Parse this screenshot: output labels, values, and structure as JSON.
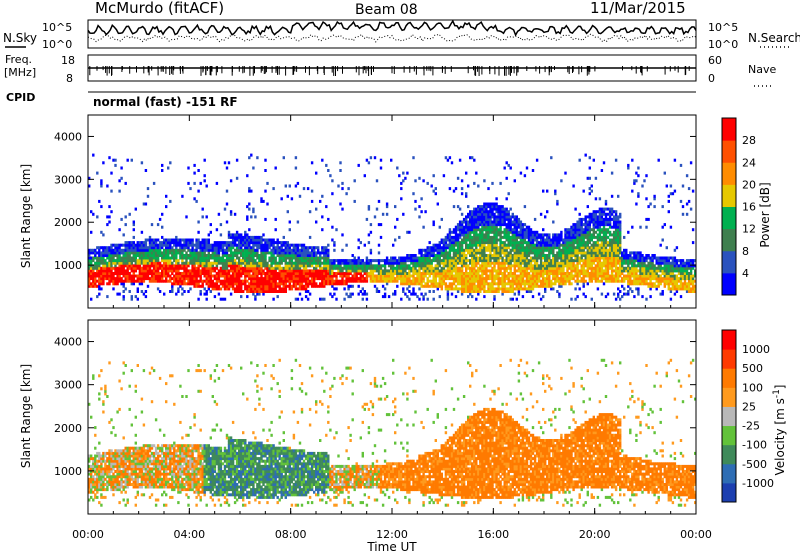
{
  "header": {
    "station": "McMurdo (fitACF)",
    "beam": "Beam 08",
    "date": "11/Mar/2015"
  },
  "status_panels": {
    "sky_label": "N.Sky",
    "search_label": "N.Search",
    "freq_label_1": "Freq.",
    "freq_label_2": "[MHz]",
    "nave_label": "Nave",
    "cpid_label": "CPID",
    "cpid_text": "normal (fast) -151 RF",
    "left_ticks_sky": [
      "10^5",
      "10^0"
    ],
    "right_ticks_sky": [
      "10^5",
      "10^0"
    ],
    "left_ticks_freq": [
      "18",
      "8"
    ],
    "right_ticks_nave": [
      "60",
      "0"
    ]
  },
  "colors": {
    "power": [
      "#0000ff",
      "#2a52be",
      "#3f7f4f",
      "#00b050",
      "#e6c800",
      "#ff8c00",
      "#ff5000",
      "#ff0000"
    ],
    "velocity": [
      "#1c3fb0",
      "#2e6db4",
      "#3f8a5a",
      "#62c23a",
      "#b8b8b8",
      "#ff9a1e",
      "#ff7a00",
      "#ff3a00",
      "#ff0000"
    ]
  },
  "chart_data": [
    {
      "type": "heatmap",
      "title": "Power [dB]",
      "xlabel": "",
      "ylabel": "Slant Range [km]",
      "x_ticks": [
        "00:00",
        "04:00",
        "08:00",
        "12:00",
        "16:00",
        "20:00",
        "00:00"
      ],
      "y_ticks": [
        "1000",
        "2000",
        "3000",
        "4000"
      ],
      "ylim": [
        0,
        4500
      ],
      "xlim": [
        "00:00",
        "24:00"
      ],
      "colorbar_label": "Power [dB]",
      "colorbar_ticks": [
        "4",
        "8",
        "12",
        "16",
        "20",
        "24",
        "28"
      ]
    },
    {
      "type": "heatmap",
      "title": "Velocity [m s-1]",
      "xlabel": "Time UT",
      "ylabel": "Slant Range [km]",
      "x_ticks": [
        "00:00",
        "04:00",
        "08:00",
        "12:00",
        "16:00",
        "20:00",
        "00:00"
      ],
      "y_ticks": [
        "1000",
        "2000",
        "3000",
        "4000"
      ],
      "ylim": [
        0,
        4500
      ],
      "xlim": [
        "00:00",
        "24:00"
      ],
      "colorbar_label": "Velocity [m s",
      "colorbar_label_sup": "-1",
      "colorbar_label_end": "]",
      "colorbar_ticks": [
        "1000",
        "500",
        "100",
        "25",
        "-25",
        "-100",
        "-500",
        "-1000"
      ]
    }
  ]
}
